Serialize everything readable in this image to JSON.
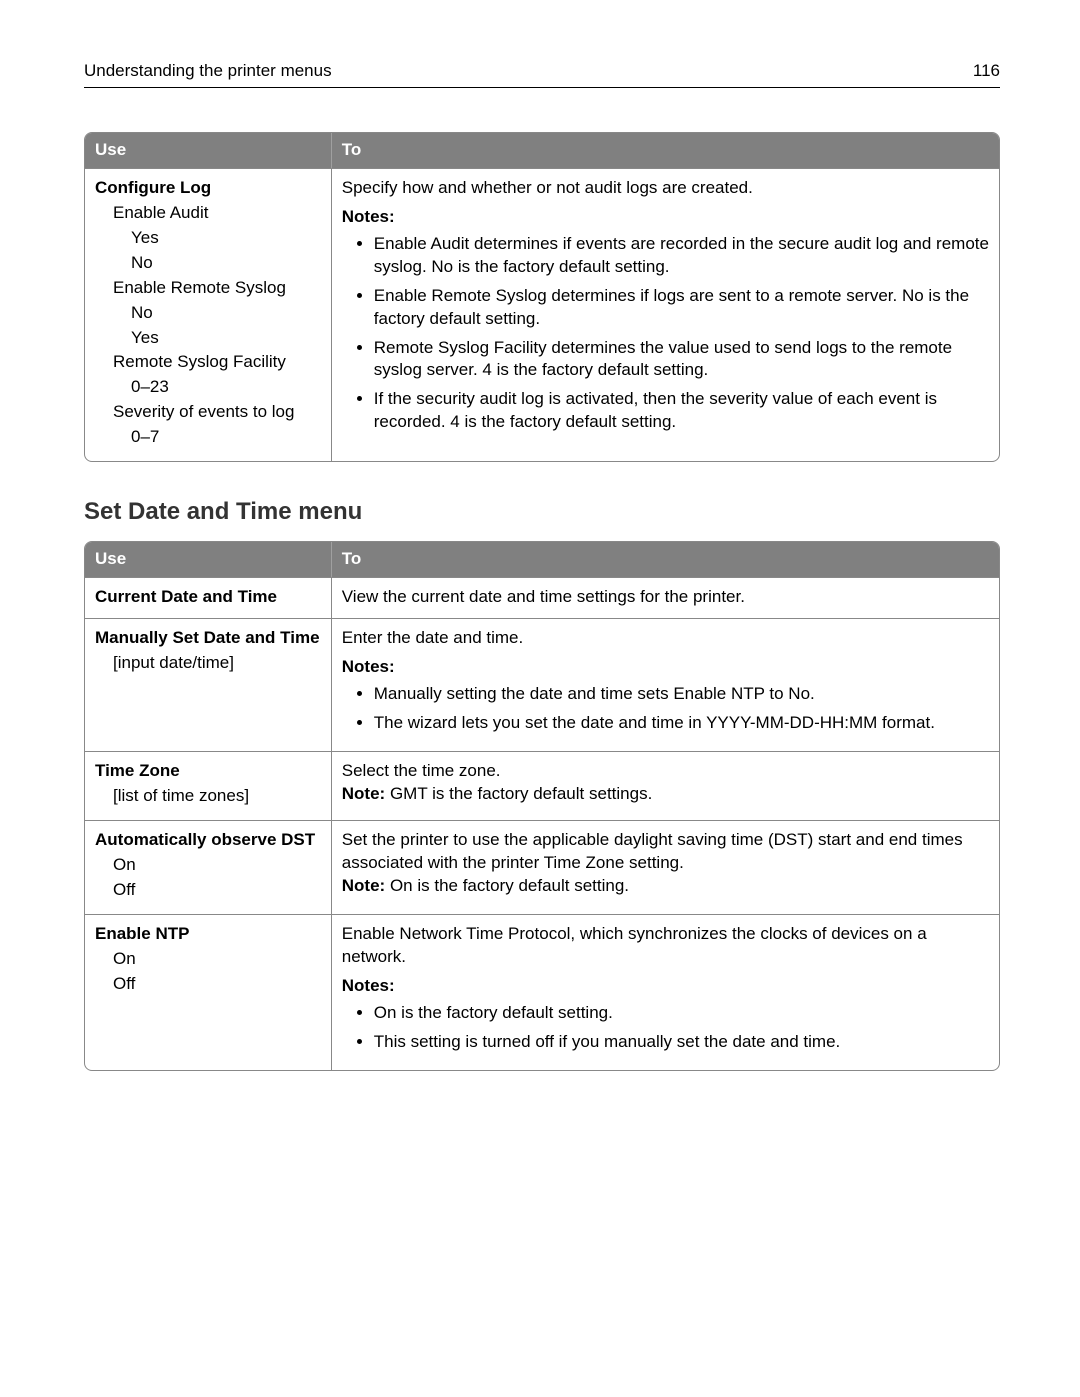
{
  "header": {
    "title": "Understanding the printer menus",
    "page_number": "116"
  },
  "table1": {
    "columns": [
      "Use",
      "To"
    ],
    "row": {
      "use": {
        "title": "Configure Log",
        "items": [
          {
            "label": "Enable Audit",
            "options": [
              "Yes",
              "No"
            ]
          },
          {
            "label": "Enable Remote Syslog",
            "options": [
              "No",
              "Yes"
            ]
          },
          {
            "label": "Remote Syslog Facility",
            "options": [
              "0–23"
            ]
          },
          {
            "label": "Severity of events to log",
            "options": [
              "0–7"
            ]
          }
        ]
      },
      "to": {
        "intro": "Specify how and whether or not audit logs are created.",
        "notes_label": "Notes:",
        "bullets": [
          "Enable Audit determines if events are recorded in the secure audit log and remote syslog. No is the factory default setting.",
          "Enable Remote Syslog determines if logs are sent to a remote server. No is the factory default setting.",
          "Remote Syslog Facility determines the value used to send logs to the remote syslog server. 4 is the factory default setting.",
          "If the security audit log is activated, then the severity value of each event is recorded. 4 is the factory default setting."
        ]
      }
    }
  },
  "section_heading": "Set Date and Time menu",
  "table2": {
    "columns": [
      "Use",
      "To"
    ],
    "rows": [
      {
        "use": {
          "title": "Current Date and Time",
          "subs": []
        },
        "to": {
          "intro": "View the current date and time settings for the printer."
        }
      },
      {
        "use": {
          "title": "Manually Set Date and Time",
          "subs": [
            "[input date/time]"
          ]
        },
        "to": {
          "intro": "Enter the date and time.",
          "notes_label": "Notes:",
          "bullets": [
            "Manually setting the date and time sets Enable NTP to No.",
            "The wizard lets you set the date and time in YYYY-MM-DD-HH:MM format."
          ]
        }
      },
      {
        "use": {
          "title": "Time Zone",
          "subs": [
            "[list of time zones]"
          ]
        },
        "to": {
          "intro": "Select the time zone.",
          "note_label": "Note:",
          "note_text": " GMT is the factory default settings."
        }
      },
      {
        "use": {
          "title": "Automatically observe DST",
          "subs": [
            "On",
            "Off"
          ]
        },
        "to": {
          "intro": "Set the printer to use the applicable daylight saving time (DST) start and end times associated with the printer Time Zone setting.",
          "note_label": "Note:",
          "note_text": " On is the factory default setting."
        }
      },
      {
        "use": {
          "title": "Enable NTP",
          "subs": [
            "On",
            "Off"
          ]
        },
        "to": {
          "intro": "Enable Network Time Protocol, which synchronizes the clocks of devices on a network.",
          "notes_label": "Notes:",
          "bullets": [
            "On is the factory default setting.",
            "This setting is turned off if you manually set the date and time."
          ]
        }
      }
    ]
  }
}
